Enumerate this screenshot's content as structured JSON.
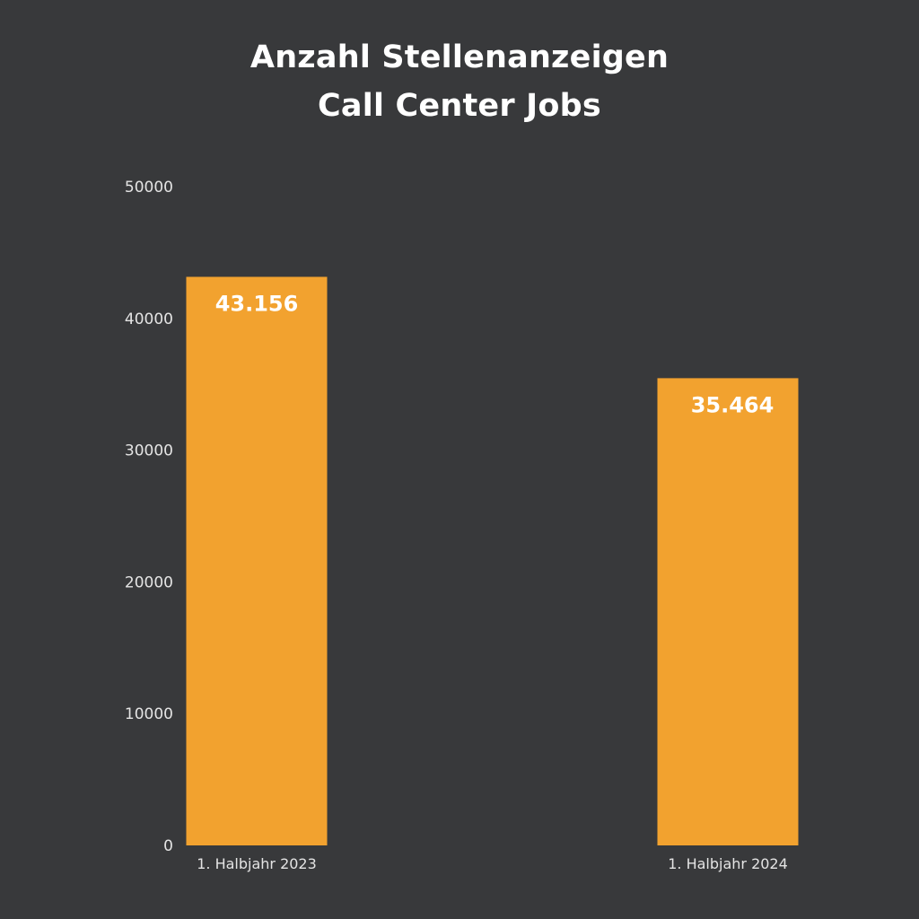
{
  "chart_data": {
    "type": "bar",
    "title_lines": [
      "Anzahl Stellenanzeigen",
      "Call Center Jobs"
    ],
    "categories": [
      "1. Halbjahr 2023",
      "1. Halbjahr 2024"
    ],
    "values": [
      43156,
      35464
    ],
    "data_labels": [
      "43.156",
      "35.464"
    ],
    "yticks": [
      "0",
      "10000",
      "20000",
      "30000",
      "40000",
      "50000"
    ],
    "ylim": [
      0,
      50000
    ],
    "grid": false,
    "legend": "none",
    "xlabel": "",
    "ylabel": "",
    "colors": {
      "background": "#38393b",
      "bar": "#f2a22f",
      "text": "#ffffff",
      "axis_text": "#e4e4e4"
    }
  }
}
